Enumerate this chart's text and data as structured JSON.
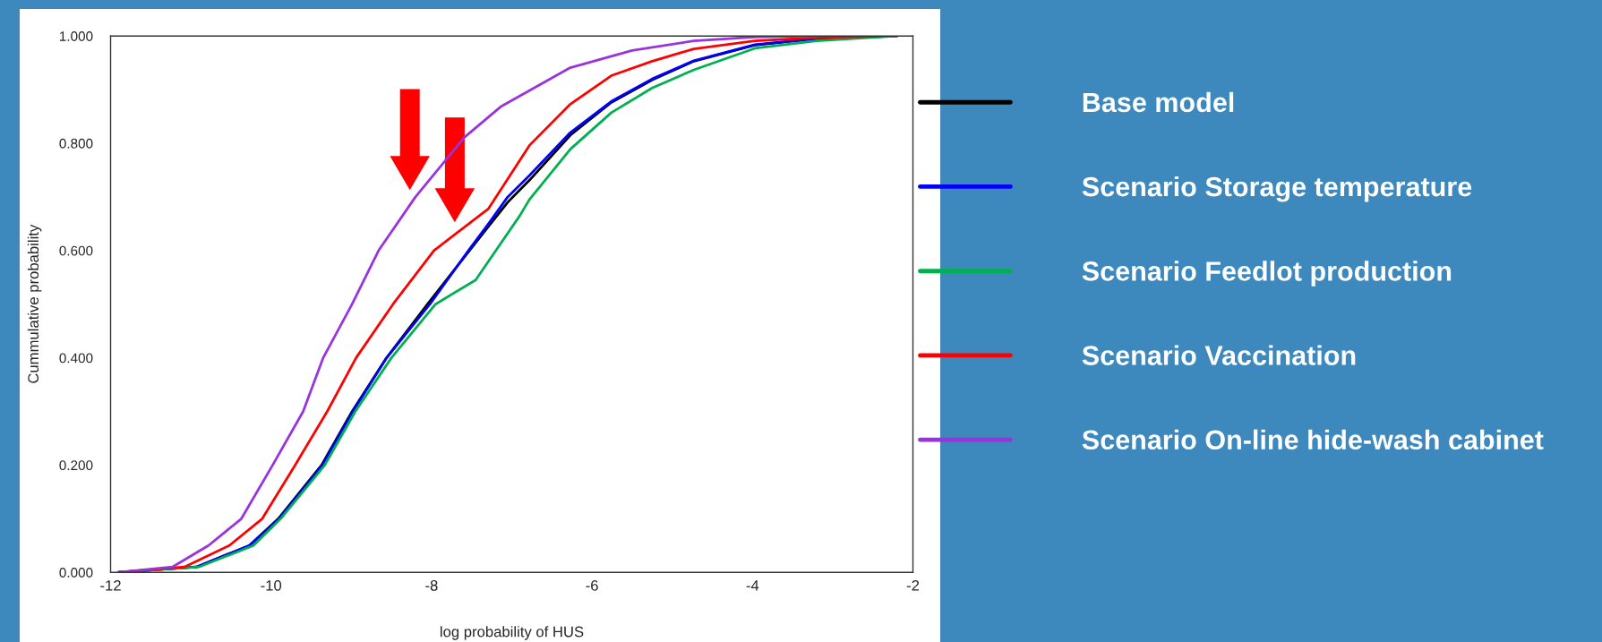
{
  "chart_data": {
    "type": "line",
    "xlabel": "log probability of HUS",
    "ylabel": "Cummulative probability",
    "xlim": [
      -12,
      -2
    ],
    "ylim": [
      0,
      1
    ],
    "xticks": [
      -12,
      -10,
      -8,
      -6,
      -4,
      -2
    ],
    "yticks": [
      {
        "value": 0,
        "label": "0.000"
      },
      {
        "value": 0.2,
        "label": "0.200"
      },
      {
        "value": 0.4,
        "label": "0.400"
      },
      {
        "value": 0.6,
        "label": "0.600"
      },
      {
        "value": 0.8,
        "label": "0.800"
      },
      {
        "value": 1,
        "label": "1.000"
      }
    ],
    "grid": false,
    "legend": "right",
    "marker": "none",
    "line_style": "solid",
    "series": [
      {
        "name": "Base model",
        "color": "#000000",
        "x": [
          -11.9,
          -10.93,
          -10.27,
          -9.91,
          -9.37,
          -8.99,
          -8.56,
          -8.05,
          -7.58,
          -7.29,
          -7.05,
          -6.78,
          -6.27,
          -5.76,
          -5.25,
          -4.73,
          -3.97,
          -3.2,
          -2.2
        ],
        "values": [
          0,
          0.01,
          0.05,
          0.1,
          0.2,
          0.3,
          0.4,
          0.5,
          0.59,
          0.645,
          0.69,
          0.731,
          0.815,
          0.876,
          0.918,
          0.953,
          0.983,
          0.995,
          1
        ]
      },
      {
        "name": "Scenario Storage temperature",
        "color": "#0000ff",
        "x": [
          -11.9,
          -10.93,
          -10.27,
          -9.9,
          -9.36,
          -8.98,
          -8.56,
          -8.02,
          -7.54,
          -7.29,
          -7.05,
          -6.78,
          -6.27,
          -5.76,
          -5.25,
          -4.73,
          -3.97,
          -3.2,
          -2.2
        ],
        "values": [
          0,
          0.01,
          0.05,
          0.1,
          0.2,
          0.3,
          0.4,
          0.5,
          0.6,
          0.65,
          0.7,
          0.74,
          0.82,
          0.878,
          0.92,
          0.954,
          0.984,
          0.995,
          1
        ]
      },
      {
        "name": "Scenario Feedlot production",
        "color": "#00b050",
        "x": [
          -11.9,
          -10.9,
          -10.22,
          -9.88,
          -9.33,
          -8.95,
          -8.5,
          -7.95,
          -7.45,
          -7.29,
          -6.9,
          -6.78,
          -6.27,
          -5.76,
          -5.25,
          -4.73,
          -3.97,
          -3.2,
          -2.2
        ],
        "values": [
          0,
          0.01,
          0.05,
          0.1,
          0.2,
          0.3,
          0.4,
          0.5,
          0.545,
          0.58,
          0.665,
          0.695,
          0.789,
          0.857,
          0.903,
          0.937,
          0.977,
          0.991,
          1
        ]
      },
      {
        "name": "Scenario Vaccination",
        "color": "#ff0000",
        "x": [
          -11.9,
          -11.08,
          -10.52,
          -10.11,
          -9.7,
          -9.3,
          -8.94,
          -8.48,
          -7.97,
          -7.36,
          -7.29,
          -6.78,
          -6.27,
          -5.76,
          -5.25,
          -4.73,
          -3.97,
          -3.2,
          -2.22
        ],
        "values": [
          0,
          0.01,
          0.05,
          0.1,
          0.2,
          0.3,
          0.4,
          0.5,
          0.6,
          0.67,
          0.678,
          0.796,
          0.873,
          0.926,
          0.953,
          0.976,
          0.991,
          0.997,
          1
        ]
      },
      {
        "name": "Scenario On-line hide-wash cabinet",
        "color": "#9933dd",
        "x": [
          -11.9,
          -11.23,
          -10.78,
          -10.37,
          -9.98,
          -9.6,
          -9.35,
          -8.99,
          -8.66,
          -8.2,
          -7.59,
          -7.13,
          -6.27,
          -5.5,
          -4.73,
          -3.97,
          -3.2
        ],
        "values": [
          0,
          0.01,
          0.05,
          0.1,
          0.2,
          0.3,
          0.4,
          0.5,
          0.6,
          0.7,
          0.811,
          0.869,
          0.941,
          0.973,
          0.991,
          0.998,
          1
        ]
      }
    ]
  }
}
